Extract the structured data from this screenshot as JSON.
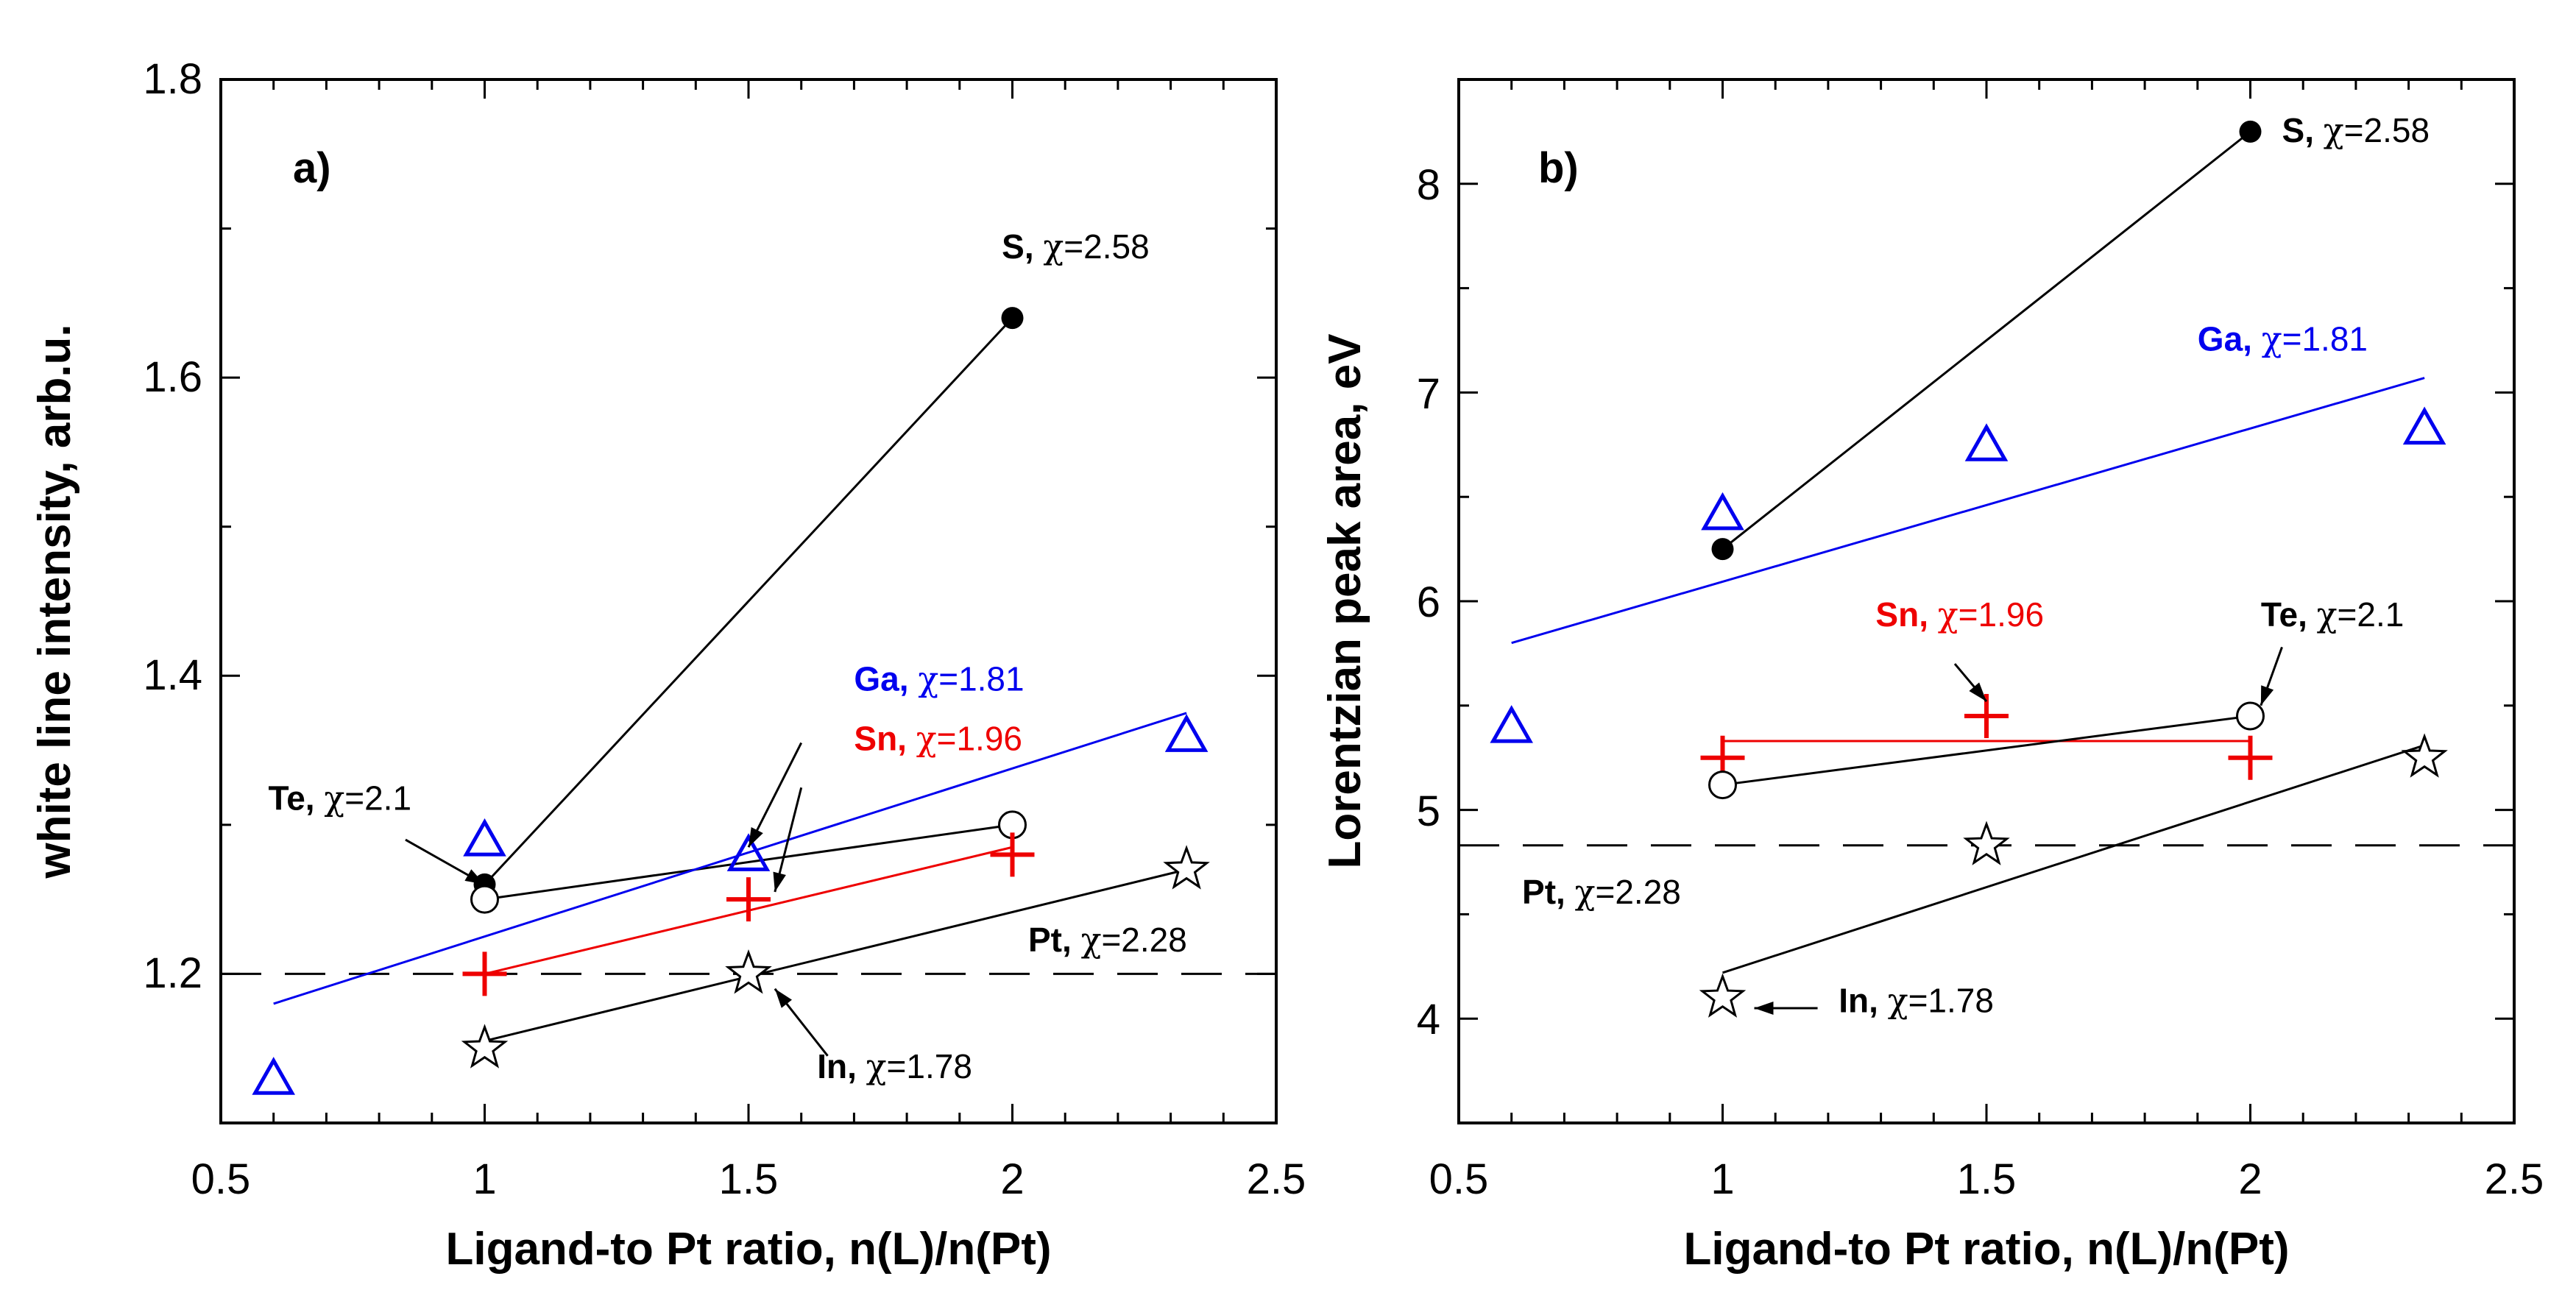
{
  "chart_data": [
    {
      "type": "scatter",
      "panel_label": "a)",
      "xlabel": "Ligand-to Pt ratio, n(L)/n(Pt)",
      "ylabel": "white line intensity, arb.u.",
      "xlim": [
        0.5,
        2.5
      ],
      "ylim": [
        1.1,
        1.8
      ],
      "xticks": [
        "0.5",
        "1",
        "1.5",
        "2",
        "2.5"
      ],
      "yticks": [
        "1.2",
        "1.4",
        "1.6",
        "1.8"
      ],
      "ytick_values": [
        1.2,
        1.4,
        1.6,
        1.8
      ],
      "reference_line": {
        "name": "Pt",
        "y": 1.2,
        "style": "dashed"
      },
      "series": [
        {
          "name": "S",
          "chi": "=2.58",
          "marker": "filled-circle",
          "color": "#000000",
          "x": [
            1.0,
            2.0
          ],
          "y": [
            1.26,
            1.64
          ],
          "line": {
            "x": [
              1.0,
              2.0
            ],
            "y": [
              1.26,
              1.64
            ]
          }
        },
        {
          "name": "Te",
          "chi": "=2.1",
          "marker": "open-circle",
          "color": "#000000",
          "x": [
            1.0,
            2.0
          ],
          "y": [
            1.25,
            1.3
          ],
          "line": {
            "x": [
              1.0,
              2.0
            ],
            "y": [
              1.25,
              1.3
            ]
          }
        },
        {
          "name": "Ga",
          "chi": "=1.81",
          "marker": "triangle",
          "color": "#0000ee",
          "x": [
            0.6,
            1.0,
            1.5,
            2.33
          ],
          "y": [
            1.13,
            1.29,
            1.28,
            1.36
          ],
          "line": {
            "x": [
              0.6,
              2.33
            ],
            "y": [
              1.18,
              1.375
            ]
          }
        },
        {
          "name": "Sn",
          "chi": "=1.96",
          "marker": "plus",
          "color": "#ee0000",
          "x": [
            1.0,
            1.5,
            2.0
          ],
          "y": [
            1.2,
            1.25,
            1.28
          ],
          "line": {
            "x": [
              1.0,
              2.0
            ],
            "y": [
              1.2,
              1.285
            ]
          }
        },
        {
          "name": "In",
          "chi": "=1.78",
          "marker": "star",
          "color": "#000000",
          "x": [
            1.0,
            1.5,
            2.33
          ],
          "y": [
            1.15,
            1.2,
            1.27
          ],
          "line": {
            "x": [
              1.0,
              2.33
            ],
            "y": [
              1.155,
              1.27
            ]
          }
        }
      ],
      "annotations": [
        {
          "name": "S",
          "chi": "=2.58",
          "color": "#000000",
          "name_color": "#000000",
          "at": [
            1.98,
            1.68
          ],
          "arrow": null
        },
        {
          "name": "Ga",
          "chi": "=1.81",
          "color": "#0000ee",
          "name_color": "#0000ee",
          "at": [
            1.7,
            1.39
          ],
          "arrow": {
            "from": [
              1.6,
              1.355
            ],
            "to": [
              1.5,
              1.285
            ]
          }
        },
        {
          "name": "Sn",
          "chi": "=1.96",
          "color": "#ee0000",
          "name_color": "#ee0000",
          "at": [
            1.7,
            1.35
          ],
          "arrow": {
            "from": [
              1.6,
              1.325
            ],
            "to": [
              1.55,
              1.255
            ]
          }
        },
        {
          "name": "Te",
          "chi": "=2.1",
          "color": "#000000",
          "name_color": "#000000",
          "at": [
            0.59,
            1.31
          ],
          "arrow": {
            "from": [
              0.85,
              1.29
            ],
            "to": [
              1.0,
              1.26
            ]
          }
        },
        {
          "name": "Pt",
          "chi": "=2.28",
          "color": "#000000",
          "name_color": "#000000",
          "at": [
            2.03,
            1.215
          ],
          "arrow": null
        },
        {
          "name": "In",
          "chi": "=1.78",
          "color": "#000000",
          "name_color": "#000000",
          "at": [
            1.63,
            1.13
          ],
          "arrow": {
            "from": [
              1.65,
              1.145
            ],
            "to": [
              1.55,
              1.19
            ]
          }
        }
      ]
    },
    {
      "type": "scatter",
      "panel_label": "b)",
      "xlabel": "Ligand-to Pt ratio, n(L)/n(Pt)",
      "ylabel": "Lorentzian peak area, eV",
      "xlim": [
        0.5,
        2.5
      ],
      "ylim": [
        3.5,
        8.5
      ],
      "xticks": [
        "0.5",
        "1",
        "1.5",
        "2",
        "2.5"
      ],
      "yticks": [
        "4",
        "5",
        "6",
        "7",
        "8"
      ],
      "ytick_values": [
        4,
        5,
        6,
        7,
        8
      ],
      "reference_line": {
        "name": "Pt",
        "y": 4.83,
        "style": "dashed"
      },
      "series": [
        {
          "name": "S",
          "chi": "=2.58",
          "marker": "filled-circle",
          "color": "#000000",
          "x": [
            1.0,
            2.0
          ],
          "y": [
            6.25,
            8.25
          ],
          "line": {
            "x": [
              1.0,
              2.0
            ],
            "y": [
              6.25,
              8.25
            ]
          }
        },
        {
          "name": "Ga",
          "chi": "=1.81",
          "marker": "triangle",
          "color": "#0000ee",
          "x": [
            0.6,
            1.0,
            1.5,
            2.33
          ],
          "y": [
            5.4,
            6.42,
            6.75,
            6.83
          ],
          "line": {
            "x": [
              0.6,
              2.33
            ],
            "y": [
              5.8,
              7.07
            ]
          }
        },
        {
          "name": "Sn",
          "chi": "=1.96",
          "marker": "plus",
          "color": "#ee0000",
          "x": [
            1.0,
            1.5,
            2.0
          ],
          "y": [
            5.25,
            5.45,
            5.25
          ],
          "line": {
            "x": [
              1.0,
              2.0
            ],
            "y": [
              5.33,
              5.33
            ]
          }
        },
        {
          "name": "Te",
          "chi": "=2.1",
          "marker": "open-circle",
          "color": "#000000",
          "x": [
            1.0,
            2.0
          ],
          "y": [
            5.12,
            5.45
          ],
          "line": {
            "x": [
              1.0,
              2.0
            ],
            "y": [
              5.12,
              5.45
            ]
          }
        },
        {
          "name": "In",
          "chi": "=1.78",
          "marker": "star",
          "color": "#000000",
          "x": [
            1.0,
            1.5,
            2.33
          ],
          "y": [
            4.1,
            4.83,
            5.25
          ],
          "line": {
            "x": [
              1.0,
              2.33
            ],
            "y": [
              4.22,
              5.31
            ]
          }
        }
      ],
      "annotations": [
        {
          "name": "S",
          "chi": "=2.58",
          "color": "#000000",
          "name_color": "#000000",
          "at": [
            2.06,
            8.2
          ],
          "arrow": null
        },
        {
          "name": "Ga",
          "chi": "=1.81",
          "color": "#0000ee",
          "name_color": "#0000ee",
          "at": [
            1.9,
            7.2
          ],
          "arrow": null
        },
        {
          "name": "Sn",
          "chi": "=1.96",
          "color": "#ee0000",
          "name_color": "#ee0000",
          "at": [
            1.29,
            5.88
          ],
          "arrow": {
            "from": [
              1.44,
              5.7
            ],
            "to": [
              1.5,
              5.52
            ]
          }
        },
        {
          "name": "Te",
          "chi": "=2.1",
          "color": "#000000",
          "name_color": "#000000",
          "at": [
            2.02,
            5.88
          ],
          "arrow": {
            "from": [
              2.06,
              5.78
            ],
            "to": [
              2.02,
              5.5
            ]
          }
        },
        {
          "name": "Pt",
          "chi": "=2.28",
          "color": "#000000",
          "name_color": "#000000",
          "at": [
            0.62,
            4.55
          ],
          "arrow": null
        },
        {
          "name": "In",
          "chi": "=1.78",
          "color": "#000000",
          "name_color": "#000000",
          "at": [
            1.22,
            4.03
          ],
          "arrow": {
            "from": [
              1.18,
              4.05
            ],
            "to": [
              1.06,
              4.05
            ]
          }
        }
      ]
    }
  ]
}
